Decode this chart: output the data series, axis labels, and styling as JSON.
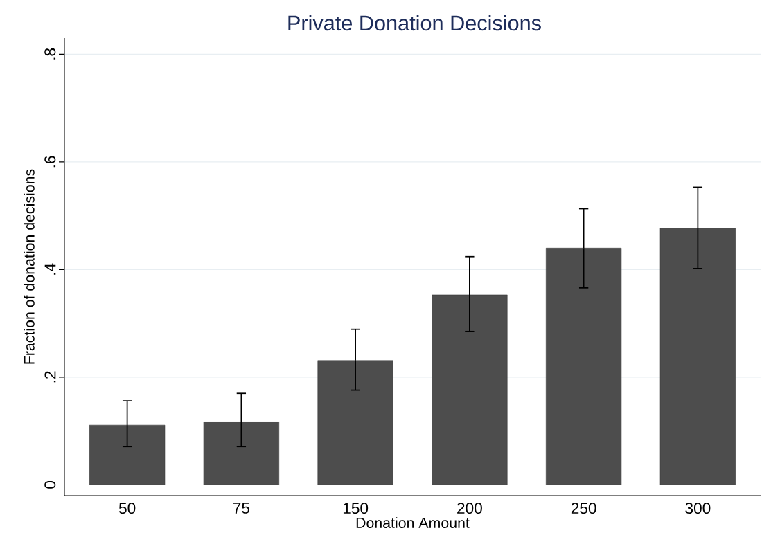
{
  "chart_data": {
    "type": "bar",
    "title": "Private Donation Decisions",
    "xlabel": "Donation Amount",
    "ylabel": "Fraction of donation decisions",
    "categories": [
      "50",
      "75",
      "150",
      "200",
      "250",
      "300"
    ],
    "values": [
      0.111,
      0.117,
      0.231,
      0.353,
      0.44,
      0.477
    ],
    "errors": [
      [
        0.071,
        0.156
      ],
      [
        0.071,
        0.17
      ],
      [
        0.176,
        0.289
      ],
      [
        0.285,
        0.424
      ],
      [
        0.366,
        0.513
      ],
      [
        0.402,
        0.553
      ]
    ],
    "color": "#4d4d4d",
    "ylim": [
      -0.02,
      0.83
    ],
    "yticks": [
      0,
      {
        "value": 0.2,
        "label": ".2"
      },
      {
        "value": 0.4,
        "label": ".4"
      },
      {
        "value": 0.6,
        "label": ".6"
      },
      {
        "value": 0.8,
        "label": ".8"
      }
    ],
    "grid": "y"
  }
}
